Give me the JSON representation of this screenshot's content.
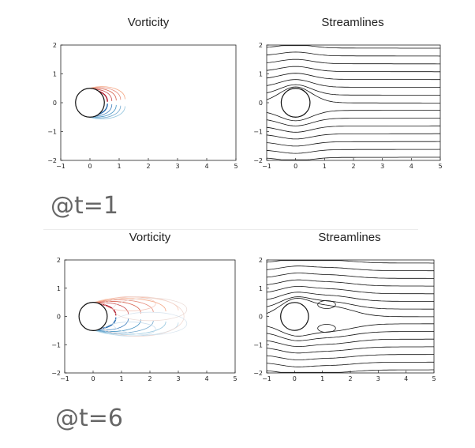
{
  "sections": [
    {
      "time_label": "@t=1",
      "charts": [
        {
          "title": "Vorticity",
          "type": "contour"
        },
        {
          "title": "Streamlines",
          "type": "streamlines"
        }
      ]
    },
    {
      "time_label": "@t=6",
      "charts": [
        {
          "title": "Vorticity",
          "type": "contour"
        },
        {
          "title": "Streamlines",
          "type": "streamlines"
        }
      ]
    }
  ],
  "chart_data": [
    {
      "type": "contour",
      "title": "Vorticity",
      "time": "@t=1",
      "xlim": [
        -1,
        5
      ],
      "ylim": [
        -2,
        2
      ],
      "xticks": [
        -1,
        0,
        1,
        2,
        3,
        4,
        5
      ],
      "yticks": [
        -2,
        -1,
        0,
        1,
        2
      ],
      "cylinder": {
        "center": [
          0,
          0
        ],
        "radius": 0.5
      },
      "positive_color": "#c0392b",
      "negative_color": "#2e7bbf"
    },
    {
      "type": "streamlines",
      "title": "Streamlines",
      "time": "@t=1",
      "xlim": [
        -1,
        5
      ],
      "ylim": [
        -2,
        2
      ],
      "xticks": [
        -1,
        0,
        1,
        2,
        3,
        4,
        5
      ],
      "yticks": [
        -2,
        -1,
        0,
        1,
        2
      ],
      "cylinder": {
        "center": [
          0,
          0
        ],
        "radius": 0.5
      },
      "recirculation": false
    },
    {
      "type": "contour",
      "title": "Vorticity",
      "time": "@t=6",
      "xlim": [
        -1,
        5
      ],
      "ylim": [
        -2,
        2
      ],
      "xticks": [
        -1,
        0,
        1,
        2,
        3,
        4,
        5
      ],
      "yticks": [
        -2,
        -1,
        0,
        1,
        2
      ],
      "cylinder": {
        "center": [
          0,
          0
        ],
        "radius": 0.5
      },
      "positive_color": "#c0392b",
      "negative_color": "#2e7bbf"
    },
    {
      "type": "streamlines",
      "title": "Streamlines",
      "time": "@t=6",
      "xlim": [
        -1,
        5
      ],
      "ylim": [
        -2,
        2
      ],
      "xticks": [
        -1,
        0,
        1,
        2,
        3,
        4,
        5
      ],
      "yticks": [
        -2,
        -1,
        0,
        1,
        2
      ],
      "cylinder": {
        "center": [
          0,
          0
        ],
        "radius": 0.5
      },
      "recirculation": true
    }
  ]
}
